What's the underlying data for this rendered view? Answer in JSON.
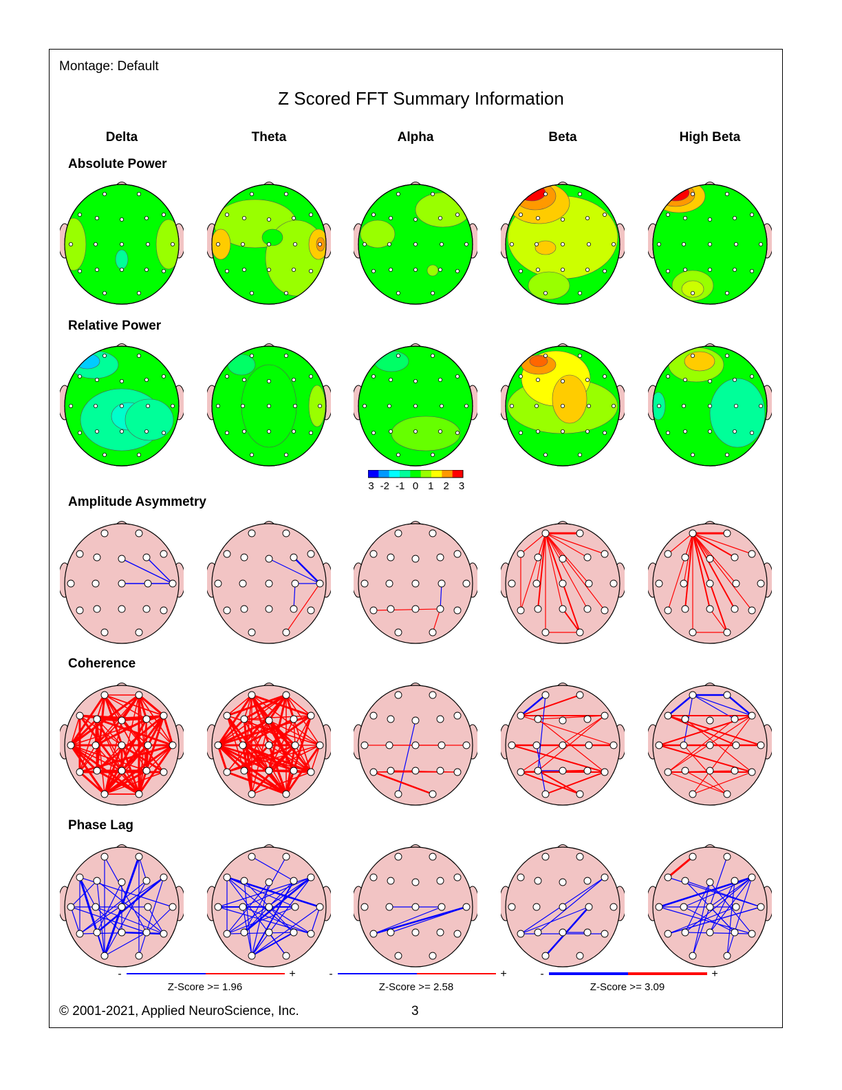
{
  "header": {
    "montage": "Montage:  Default",
    "title": "Z Scored FFT Summary Information"
  },
  "bands": [
    "Delta",
    "Theta",
    "Alpha",
    "Beta",
    "High Beta"
  ],
  "rows": [
    {
      "label": "Absolute Power",
      "kind": "map"
    },
    {
      "label": "Relative Power",
      "kind": "map"
    },
    {
      "label": "Amplitude Asymmetry",
      "kind": "conn"
    },
    {
      "label": "Coherence",
      "kind": "conn"
    },
    {
      "label": "Phase Lag",
      "kind": "conn"
    }
  ],
  "colorbar": {
    "ticks": [
      "-3",
      "-2",
      "-1",
      "0",
      "1",
      "2",
      "3"
    ],
    "colors": [
      "#0000ff",
      "#0099ff",
      "#00ffff",
      "#00ff99",
      "#00ff00",
      "#99ff00",
      "#ffff00",
      "#ff9900",
      "#ff0000"
    ]
  },
  "colors": {
    "head": "#f2c4c4",
    "negative": "#0000ff",
    "positive": "#ff0000"
  },
  "zscore_legends": [
    {
      "label": "Z-Score >= 1.96",
      "minus": "-",
      "plus": "+"
    },
    {
      "label": "Z-Score >= 2.58",
      "minus": "-",
      "plus": "+"
    },
    {
      "label": "Z-Score >= 3.09",
      "minus": "-",
      "plus": "+"
    }
  ],
  "footer": {
    "copyright": "© 2001-2021, Applied NeuroScience, Inc.",
    "page": "3"
  }
}
